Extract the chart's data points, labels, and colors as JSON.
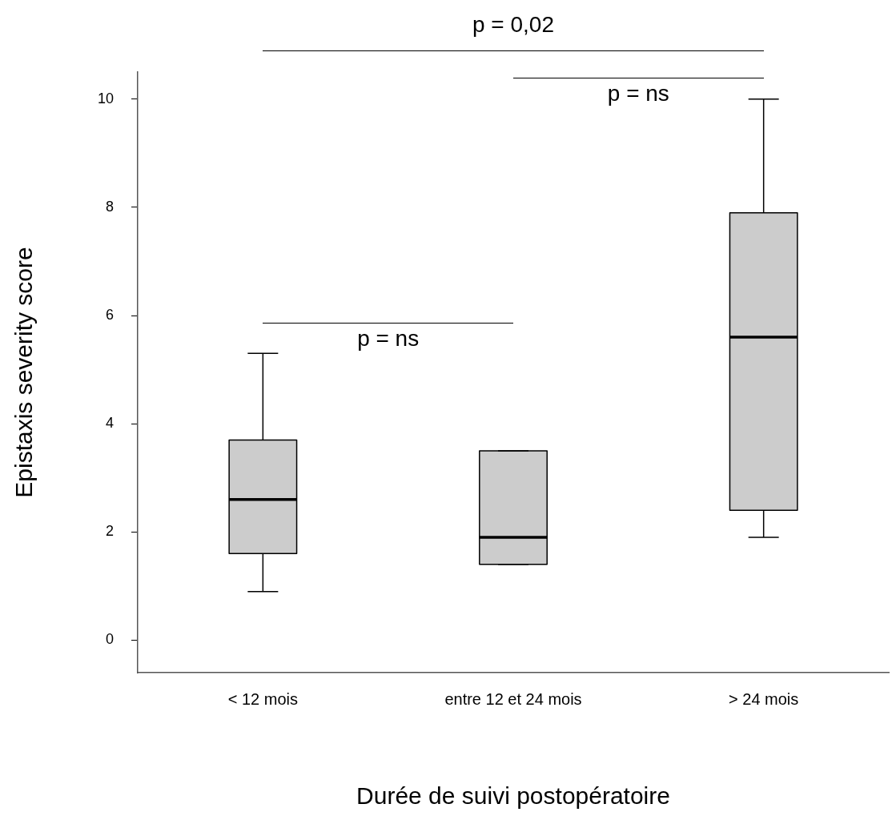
{
  "chart_data": {
    "type": "box",
    "xlabel": "Durée de suivi postopératoire",
    "ylabel": "Epistaxis severity score",
    "categories": [
      "< 12 mois",
      "entre 12 et 24 mois",
      "> 24 mois"
    ],
    "boxes": [
      {
        "low": 0.9,
        "q1": 1.6,
        "median": 2.6,
        "q3": 3.7,
        "high": 5.3
      },
      {
        "low": 1.4,
        "q1": 1.4,
        "median": 1.9,
        "q3": 3.5,
        "high": 3.5
      },
      {
        "low": 1.9,
        "q1": 2.4,
        "median": 5.6,
        "q3": 7.9,
        "high": 10
      }
    ],
    "color": "#cccccc",
    "ylim": [
      -0.6,
      10.5
    ],
    "yticks": [
      0,
      2,
      4,
      6,
      8,
      10
    ],
    "grid": false,
    "legend": false,
    "annotations": [
      "p = 0,02",
      "p = ns",
      "p = ns"
    ]
  }
}
